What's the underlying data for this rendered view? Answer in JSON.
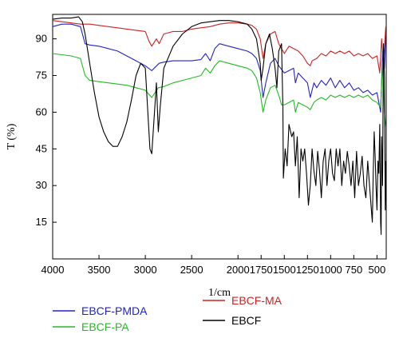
{
  "chart_data": {
    "type": "line",
    "xlabel": "1/cm",
    "ylabel": "T (%)",
    "xlim": [
      4000,
      400
    ],
    "ylim": [
      0,
      100
    ],
    "x_ticks": [
      4000,
      3500,
      3000,
      2500,
      2000,
      1750,
      1500,
      1250,
      1000,
      750,
      500
    ],
    "y_ticks": [
      15,
      30,
      45,
      60,
      75,
      90
    ],
    "grid": false,
    "legend_position": "bottom",
    "series": [
      {
        "name": "EBCF-PMDA",
        "color": "#2222cc",
        "points": [
          [
            4000,
            95
          ],
          [
            3900,
            96
          ],
          [
            3800,
            96
          ],
          [
            3700,
            95
          ],
          [
            3650,
            88
          ],
          [
            3600,
            87.5
          ],
          [
            3500,
            87
          ],
          [
            3400,
            86
          ],
          [
            3300,
            85
          ],
          [
            3200,
            83
          ],
          [
            3100,
            81
          ],
          [
            3000,
            79
          ],
          [
            2930,
            77
          ],
          [
            2850,
            80
          ],
          [
            2800,
            80.5
          ],
          [
            2700,
            81
          ],
          [
            2600,
            81
          ],
          [
            2500,
            81
          ],
          [
            2400,
            81.5
          ],
          [
            2350,
            84
          ],
          [
            2300,
            81
          ],
          [
            2250,
            86
          ],
          [
            2200,
            88
          ],
          [
            2100,
            87
          ],
          [
            2000,
            86
          ],
          [
            1900,
            85
          ],
          [
            1850,
            84
          ],
          [
            1800,
            82
          ],
          [
            1760,
            77
          ],
          [
            1730,
            66
          ],
          [
            1700,
            72
          ],
          [
            1650,
            80
          ],
          [
            1600,
            82
          ],
          [
            1560,
            79
          ],
          [
            1500,
            76
          ],
          [
            1450,
            77
          ],
          [
            1400,
            78
          ],
          [
            1380,
            72
          ],
          [
            1350,
            76
          ],
          [
            1300,
            74
          ],
          [
            1250,
            72
          ],
          [
            1220,
            66
          ],
          [
            1180,
            72
          ],
          [
            1150,
            70
          ],
          [
            1100,
            73
          ],
          [
            1050,
            71
          ],
          [
            1000,
            74
          ],
          [
            950,
            70
          ],
          [
            900,
            73
          ],
          [
            850,
            70
          ],
          [
            800,
            72
          ],
          [
            750,
            69
          ],
          [
            700,
            70
          ],
          [
            650,
            68
          ],
          [
            600,
            69
          ],
          [
            550,
            67
          ],
          [
            500,
            68
          ],
          [
            460,
            60
          ],
          [
            440,
            85
          ],
          [
            420,
            78
          ],
          [
            405,
            92
          ]
        ]
      },
      {
        "name": "EBCF-MA",
        "color": "#cc2222",
        "points": [
          [
            4000,
            97.5
          ],
          [
            3900,
            97
          ],
          [
            3800,
            96.5
          ],
          [
            3700,
            96
          ],
          [
            3600,
            96
          ],
          [
            3500,
            95.5
          ],
          [
            3400,
            95
          ],
          [
            3300,
            94.5
          ],
          [
            3200,
            94
          ],
          [
            3100,
            93.5
          ],
          [
            3000,
            93
          ],
          [
            2960,
            89
          ],
          [
            2930,
            87
          ],
          [
            2880,
            90
          ],
          [
            2850,
            88
          ],
          [
            2800,
            92
          ],
          [
            2700,
            93
          ],
          [
            2600,
            93
          ],
          [
            2500,
            94
          ],
          [
            2400,
            94.5
          ],
          [
            2300,
            95
          ],
          [
            2200,
            96
          ],
          [
            2100,
            96.5
          ],
          [
            2000,
            96.5
          ],
          [
            1900,
            96
          ],
          [
            1850,
            95.5
          ],
          [
            1800,
            94
          ],
          [
            1760,
            90
          ],
          [
            1730,
            82
          ],
          [
            1700,
            88
          ],
          [
            1650,
            92
          ],
          [
            1600,
            93
          ],
          [
            1560,
            88
          ],
          [
            1530,
            86
          ],
          [
            1500,
            84
          ],
          [
            1450,
            87
          ],
          [
            1400,
            86
          ],
          [
            1350,
            85
          ],
          [
            1300,
            83
          ],
          [
            1250,
            80
          ],
          [
            1220,
            79
          ],
          [
            1200,
            81
          ],
          [
            1150,
            82
          ],
          [
            1100,
            84
          ],
          [
            1050,
            83
          ],
          [
            1000,
            85
          ],
          [
            950,
            84
          ],
          [
            900,
            85
          ],
          [
            850,
            84
          ],
          [
            800,
            85
          ],
          [
            750,
            83
          ],
          [
            700,
            84
          ],
          [
            650,
            83
          ],
          [
            600,
            84
          ],
          [
            550,
            82
          ],
          [
            500,
            83
          ],
          [
            470,
            76
          ],
          [
            450,
            90
          ],
          [
            430,
            80
          ],
          [
            405,
            95
          ]
        ]
      },
      {
        "name": "EBCF-PA",
        "color": "#22bb22",
        "points": [
          [
            4000,
            84
          ],
          [
            3900,
            83.5
          ],
          [
            3800,
            83
          ],
          [
            3700,
            82
          ],
          [
            3650,
            75
          ],
          [
            3600,
            73
          ],
          [
            3500,
            72.5
          ],
          [
            3400,
            72
          ],
          [
            3300,
            71.5
          ],
          [
            3200,
            71
          ],
          [
            3100,
            70
          ],
          [
            3000,
            69
          ],
          [
            2930,
            66
          ],
          [
            2860,
            70
          ],
          [
            2800,
            70.5
          ],
          [
            2700,
            72
          ],
          [
            2600,
            73
          ],
          [
            2500,
            74
          ],
          [
            2400,
            75
          ],
          [
            2350,
            78
          ],
          [
            2300,
            76
          ],
          [
            2250,
            79
          ],
          [
            2200,
            81
          ],
          [
            2100,
            80
          ],
          [
            2000,
            79
          ],
          [
            1900,
            78
          ],
          [
            1850,
            77
          ],
          [
            1800,
            74
          ],
          [
            1760,
            68
          ],
          [
            1730,
            60
          ],
          [
            1700,
            65
          ],
          [
            1650,
            70
          ],
          [
            1600,
            71
          ],
          [
            1560,
            67
          ],
          [
            1530,
            63
          ],
          [
            1500,
            63
          ],
          [
            1450,
            64
          ],
          [
            1400,
            65
          ],
          [
            1380,
            60
          ],
          [
            1350,
            64
          ],
          [
            1300,
            63
          ],
          [
            1250,
            62
          ],
          [
            1220,
            61
          ],
          [
            1180,
            64
          ],
          [
            1150,
            65
          ],
          [
            1100,
            66
          ],
          [
            1050,
            65
          ],
          [
            1000,
            67
          ],
          [
            950,
            66
          ],
          [
            900,
            67
          ],
          [
            850,
            66
          ],
          [
            800,
            67
          ],
          [
            750,
            66
          ],
          [
            700,
            67
          ],
          [
            650,
            66
          ],
          [
            600,
            67
          ],
          [
            550,
            65
          ],
          [
            500,
            64
          ],
          [
            460,
            62
          ],
          [
            440,
            80
          ],
          [
            420,
            60
          ],
          [
            405,
            54
          ]
        ]
      },
      {
        "name": "EBCF",
        "color": "#000000",
        "points": [
          [
            4000,
            98
          ],
          [
            3900,
            98.5
          ],
          [
            3800,
            98.5
          ],
          [
            3720,
            99
          ],
          [
            3680,
            97
          ],
          [
            3650,
            92
          ],
          [
            3600,
            80
          ],
          [
            3550,
            68
          ],
          [
            3500,
            58
          ],
          [
            3450,
            52
          ],
          [
            3400,
            48
          ],
          [
            3350,
            46
          ],
          [
            3300,
            46
          ],
          [
            3250,
            50
          ],
          [
            3200,
            56
          ],
          [
            3150,
            65
          ],
          [
            3100,
            75
          ],
          [
            3050,
            80
          ],
          [
            3000,
            78
          ],
          [
            2970,
            58
          ],
          [
            2950,
            45
          ],
          [
            2930,
            43
          ],
          [
            2910,
            55
          ],
          [
            2880,
            72
          ],
          [
            2860,
            52
          ],
          [
            2840,
            62
          ],
          [
            2800,
            78
          ],
          [
            2700,
            87
          ],
          [
            2600,
            92
          ],
          [
            2500,
            95
          ],
          [
            2400,
            96.5
          ],
          [
            2300,
            97
          ],
          [
            2200,
            97.5
          ],
          [
            2100,
            97.5
          ],
          [
            2000,
            97
          ],
          [
            1900,
            96
          ],
          [
            1850,
            94
          ],
          [
            1800,
            90
          ],
          [
            1760,
            80
          ],
          [
            1750,
            73
          ],
          [
            1730,
            78
          ],
          [
            1700,
            88
          ],
          [
            1660,
            92
          ],
          [
            1630,
            86
          ],
          [
            1600,
            78
          ],
          [
            1580,
            70
          ],
          [
            1560,
            85
          ],
          [
            1530,
            88
          ],
          [
            1515,
            62
          ],
          [
            1510,
            33
          ],
          [
            1490,
            45
          ],
          [
            1470,
            38
          ],
          [
            1450,
            55
          ],
          [
            1420,
            50
          ],
          [
            1400,
            52
          ],
          [
            1380,
            38
          ],
          [
            1360,
            50
          ],
          [
            1340,
            25
          ],
          [
            1320,
            45
          ],
          [
            1300,
            40
          ],
          [
            1280,
            45
          ],
          [
            1260,
            35
          ],
          [
            1240,
            22
          ],
          [
            1220,
            30
          ],
          [
            1200,
            45
          ],
          [
            1180,
            36
          ],
          [
            1160,
            30
          ],
          [
            1140,
            44
          ],
          [
            1120,
            36
          ],
          [
            1100,
            25
          ],
          [
            1080,
            40
          ],
          [
            1060,
            45
          ],
          [
            1040,
            30
          ],
          [
            1020,
            40
          ],
          [
            1000,
            45
          ],
          [
            980,
            35
          ],
          [
            960,
            32
          ],
          [
            940,
            45
          ],
          [
            920,
            38
          ],
          [
            900,
            45
          ],
          [
            880,
            30
          ],
          [
            860,
            40
          ],
          [
            840,
            35
          ],
          [
            820,
            44
          ],
          [
            800,
            38
          ],
          [
            780,
            30
          ],
          [
            760,
            40
          ],
          [
            740,
            25
          ],
          [
            720,
            44
          ],
          [
            700,
            30
          ],
          [
            680,
            35
          ],
          [
            660,
            42
          ],
          [
            640,
            30
          ],
          [
            620,
            25
          ],
          [
            600,
            40
          ],
          [
            580,
            30
          ],
          [
            560,
            20
          ],
          [
            550,
            15
          ],
          [
            540,
            35
          ],
          [
            530,
            52
          ],
          [
            520,
            42
          ],
          [
            510,
            30
          ],
          [
            500,
            20
          ],
          [
            490,
            40
          ],
          [
            480,
            35
          ],
          [
            470,
            55
          ],
          [
            460,
            15
          ],
          [
            455,
            10
          ],
          [
            450,
            50
          ],
          [
            440,
            30
          ],
          [
            430,
            88
          ],
          [
            420,
            75
          ],
          [
            410,
            20
          ],
          [
            405,
            40
          ]
        ]
      }
    ]
  }
}
